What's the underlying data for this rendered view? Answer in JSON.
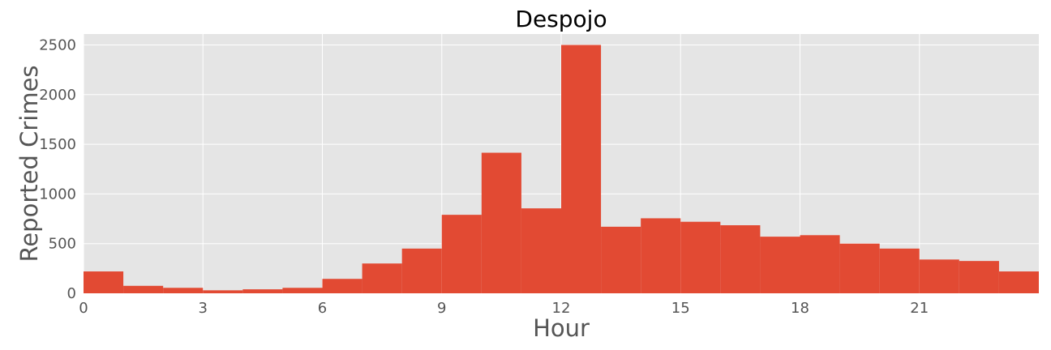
{
  "chart_data": {
    "type": "bar",
    "title": "Despojo",
    "xlabel": "Hour",
    "ylabel": "Reported Crimes",
    "x": [
      0,
      1,
      2,
      3,
      4,
      5,
      6,
      7,
      8,
      9,
      10,
      11,
      12,
      13,
      14,
      15,
      16,
      17,
      18,
      19,
      20,
      21,
      22,
      23
    ],
    "values": [
      220,
      75,
      55,
      30,
      40,
      55,
      145,
      300,
      450,
      790,
      1415,
      855,
      2500,
      670,
      755,
      720,
      685,
      570,
      585,
      500,
      450,
      340,
      325,
      220
    ],
    "xlim": [
      0,
      24
    ],
    "ylim": [
      0,
      2610
    ],
    "x_ticks": [
      0,
      3,
      6,
      9,
      12,
      15,
      18,
      21
    ],
    "y_ticks": [
      0,
      500,
      1000,
      1500,
      2000,
      2500
    ],
    "grid": true,
    "colors": {
      "bar": "#E24A33",
      "plot_background": "#E5E5E5",
      "grid": "#FFFFFF",
      "tick_text": "#555555",
      "title_text": "#000000"
    }
  }
}
